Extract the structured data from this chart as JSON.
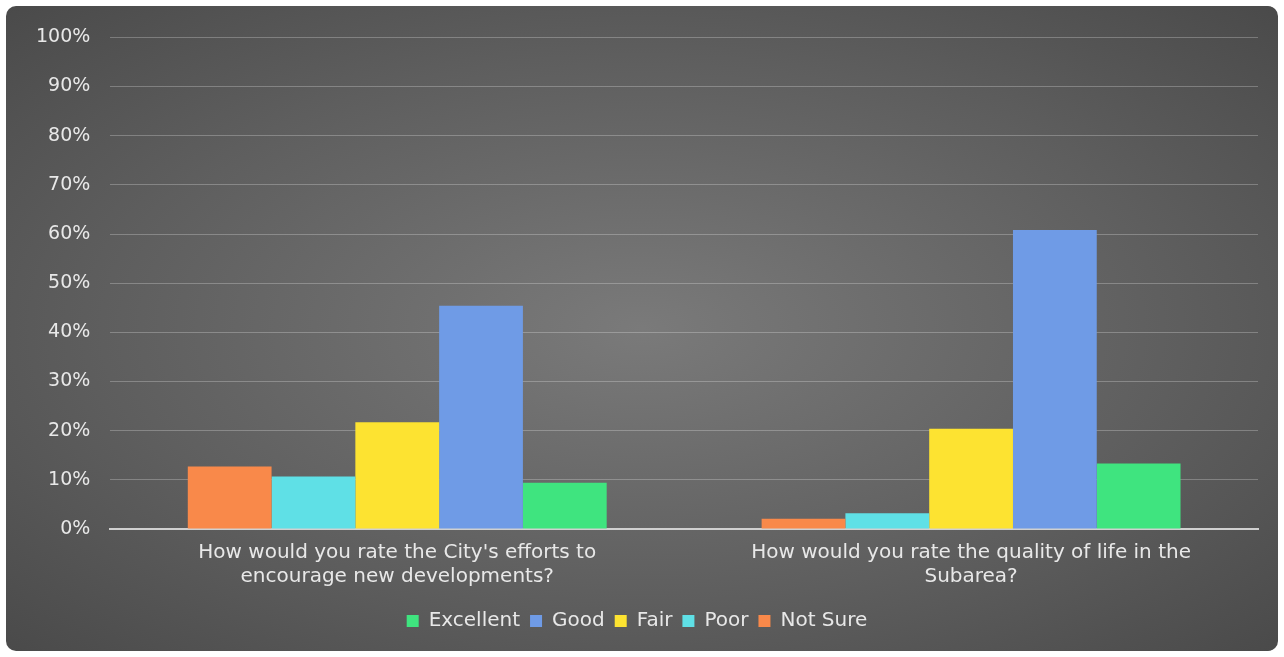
{
  "chart_data": {
    "type": "bar",
    "categories": [
      "How would you rate the City's efforts to encourage new developments?",
      "How would you rate the quality of life in the Subarea?"
    ],
    "series": [
      {
        "name": "Not Sure",
        "color": "#f9894a",
        "values": [
          12.7,
          2.1
        ]
      },
      {
        "name": "Poor",
        "color": "#5fe0e6",
        "values": [
          10.7,
          3.2
        ]
      },
      {
        "name": "Fair",
        "color": "#fde331",
        "values": [
          21.7,
          20.4
        ]
      },
      {
        "name": "Good",
        "color": "#6f9be6",
        "values": [
          45.4,
          60.8
        ]
      },
      {
        "name": "Excellent",
        "color": "#3fe47f",
        "values": [
          9.4,
          13.3
        ]
      }
    ],
    "ylim": [
      0,
      100
    ],
    "yticks": [
      {
        "value": 0,
        "label": "0%"
      },
      {
        "value": 10,
        "label": "10%"
      },
      {
        "value": 20,
        "label": "20%"
      },
      {
        "value": 30,
        "label": "30%"
      },
      {
        "value": 40,
        "label": "40%"
      },
      {
        "value": 50,
        "label": "50%"
      },
      {
        "value": 60,
        "label": "60%"
      },
      {
        "value": 70,
        "label": "70%"
      },
      {
        "value": 80,
        "label": "80%"
      },
      {
        "value": 90,
        "label": "90%"
      },
      {
        "value": 100,
        "label": "100%"
      }
    ],
    "grid": "y",
    "legend": "bottom"
  }
}
